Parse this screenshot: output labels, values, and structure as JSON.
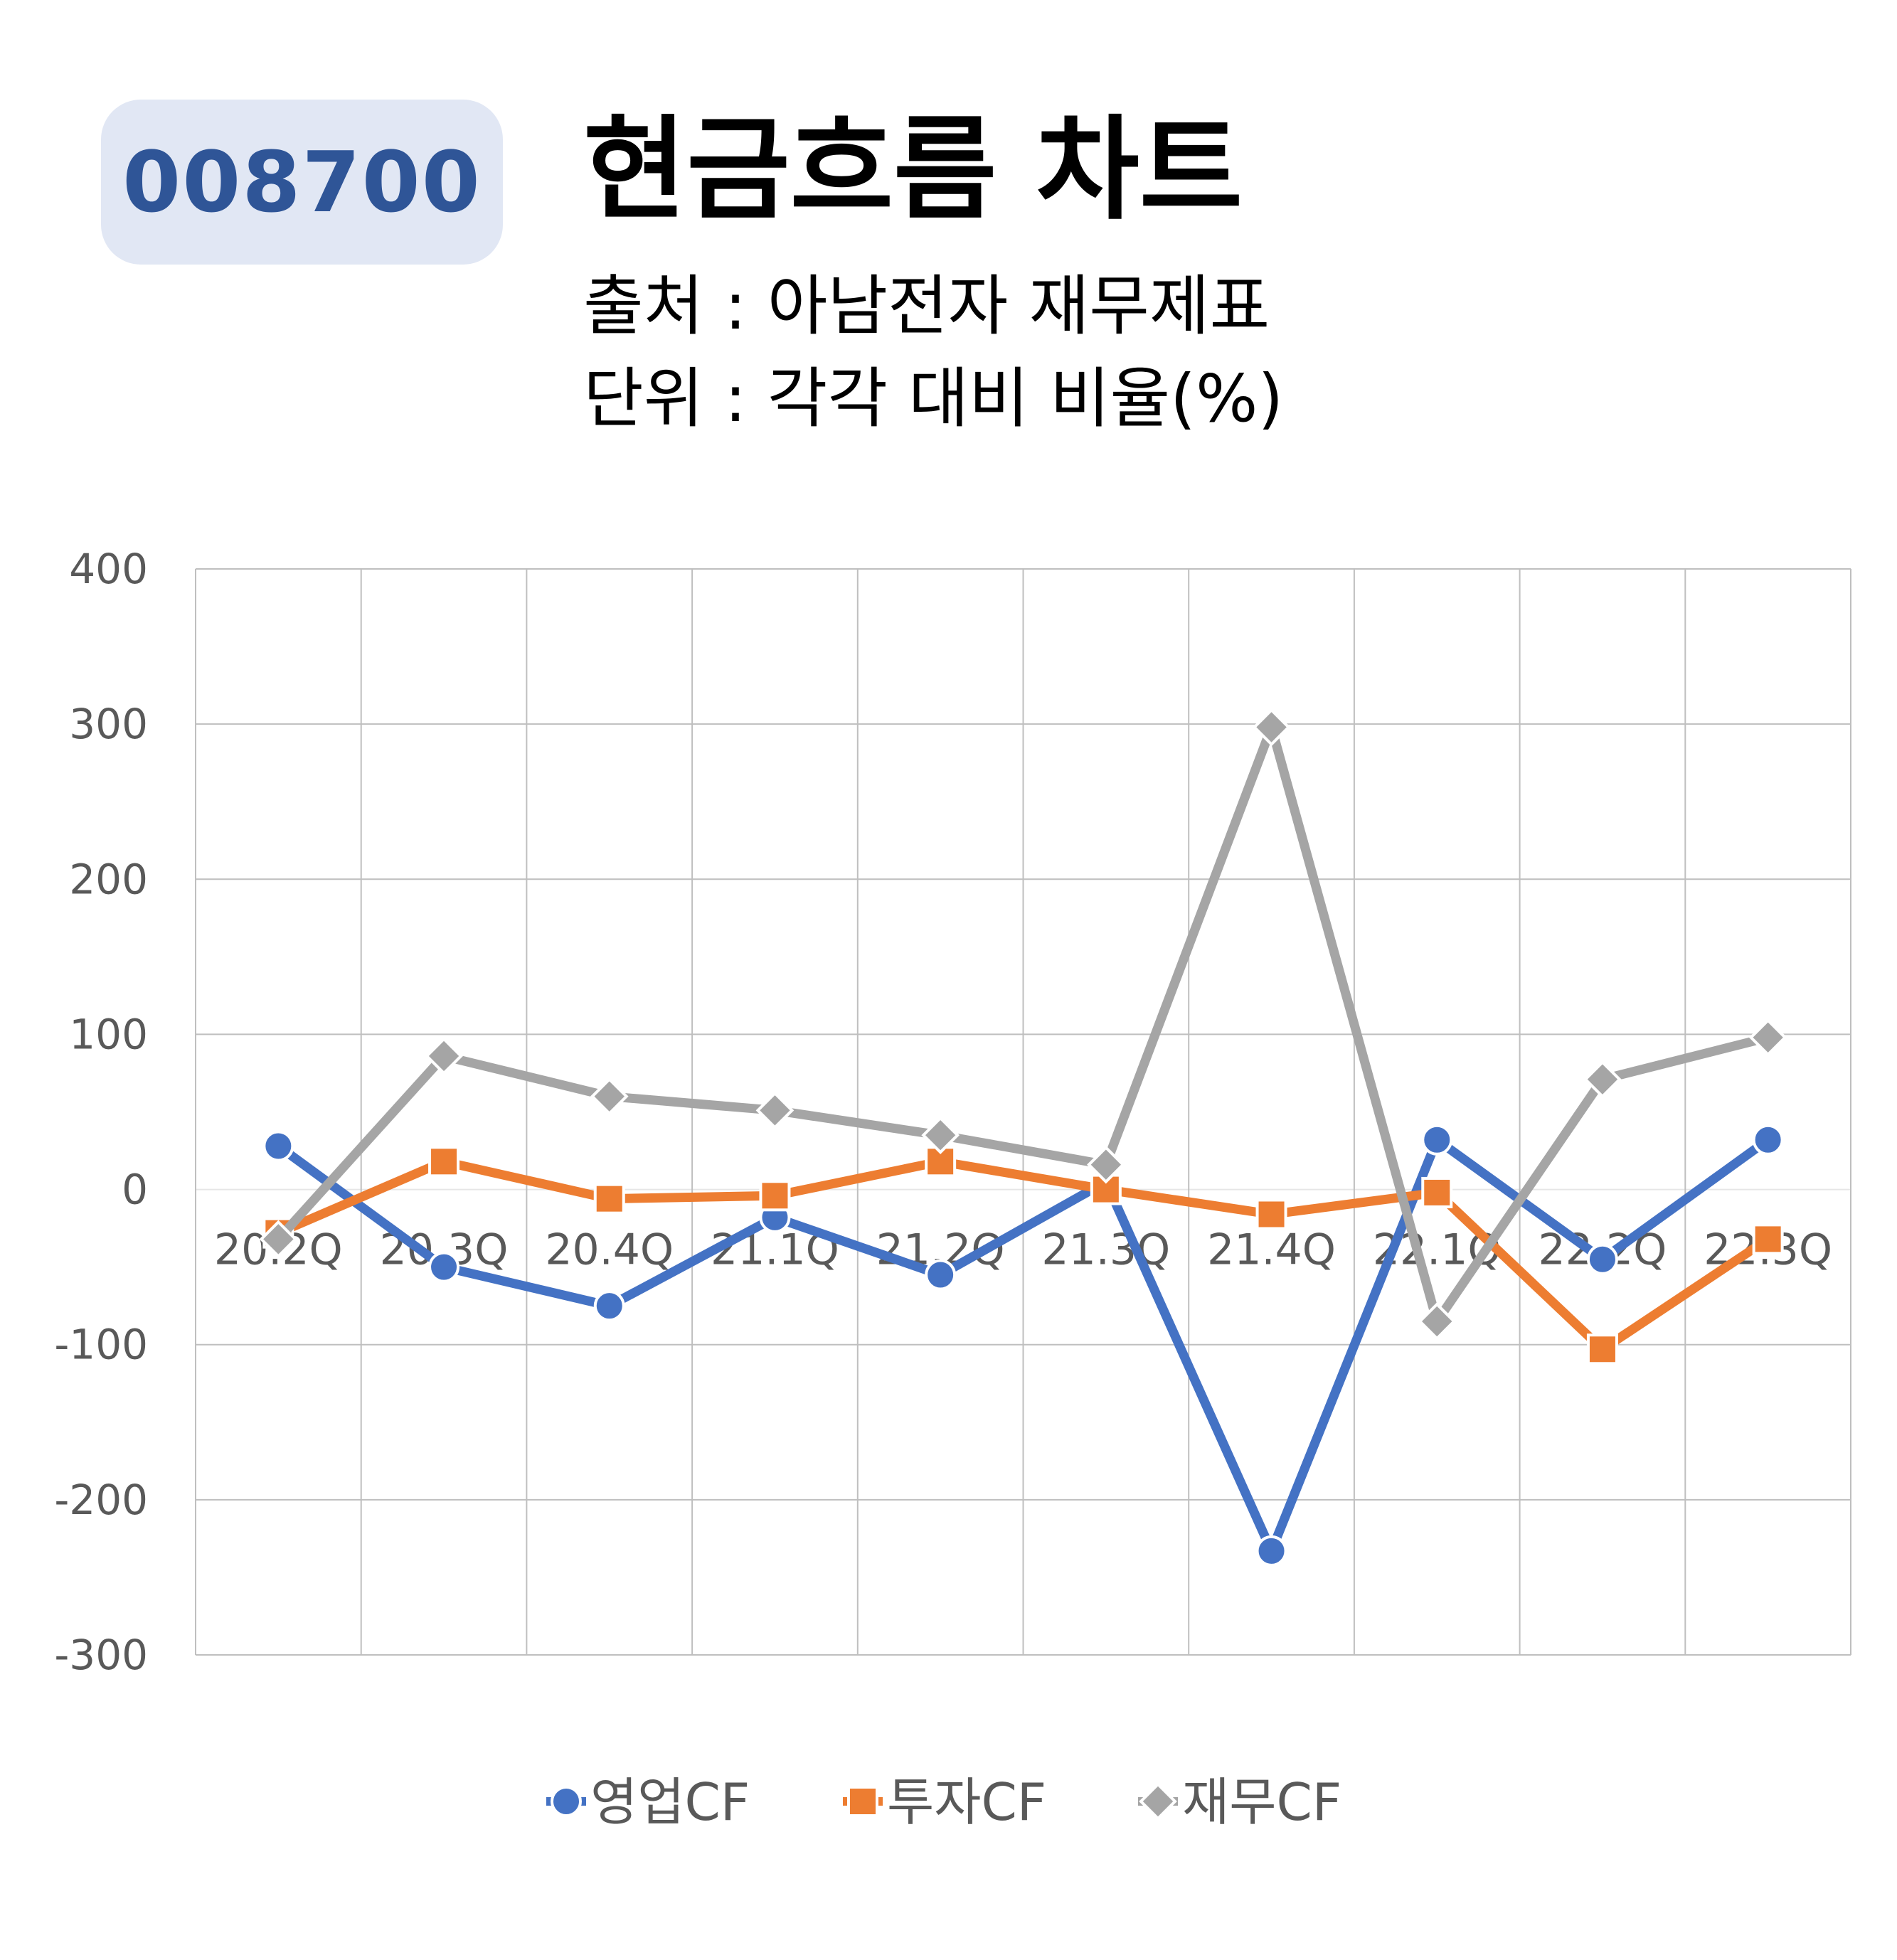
{
  "header": {
    "code": "008700",
    "title": "현금흐름 차트",
    "source_line": "출처 : 아남전자 재무제표",
    "unit_line": "단위 : 각각 대비 비율(%)"
  },
  "chart_data": {
    "type": "line",
    "categories": [
      "20.2Q",
      "20.3Q",
      "20.4Q",
      "21.1Q",
      "21.2Q",
      "21.3Q",
      "21.4Q",
      "22.1Q",
      "22.2Q",
      "22.3Q"
    ],
    "series": [
      {
        "name": "영업CF",
        "color": "#4472c4",
        "marker": "circle",
        "values": [
          28,
          -50,
          -75,
          -18,
          -55,
          5,
          -233,
          32,
          -45,
          32
        ]
      },
      {
        "name": "투자CF",
        "color": "#ed7d31",
        "marker": "square",
        "values": [
          -28,
          18,
          -6,
          -4,
          18,
          0,
          -16,
          -2,
          -103,
          -32
        ]
      },
      {
        "name": "재무CF",
        "color": "#a5a5a5",
        "marker": "diamond",
        "values": [
          -32,
          86,
          60,
          51,
          35,
          16,
          298,
          -85,
          71,
          98
        ]
      }
    ],
    "yticks": [
      400,
      300,
      200,
      100,
      0,
      -100,
      -200,
      -300
    ],
    "ylim": [
      -300,
      400
    ],
    "grid": true,
    "legend_position": "bottom"
  }
}
